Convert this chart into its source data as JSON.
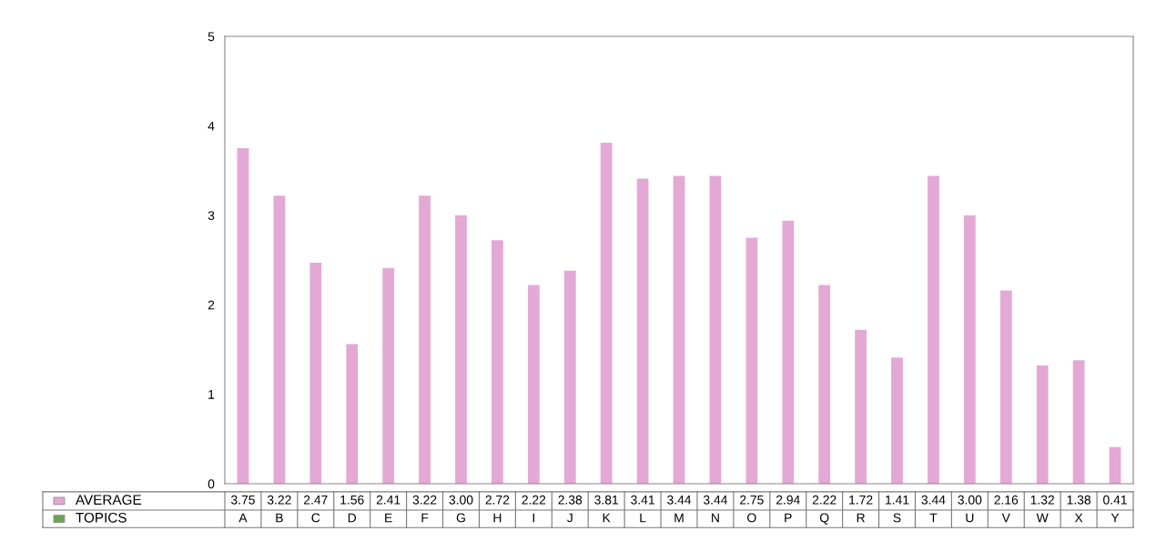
{
  "chart_data": {
    "type": "bar",
    "annotations": [
      "TOPICS"
    ],
    "categories": [
      "A",
      "B",
      "C",
      "D",
      "E",
      "F",
      "G",
      "H",
      "I",
      "J",
      "K",
      "L",
      "M",
      "N",
      "O",
      "P",
      "Q",
      "R",
      "S",
      "T",
      "U",
      "V",
      "W",
      "X",
      "Y"
    ],
    "series": [
      {
        "name": "AVERAGE",
        "color": "#e4a8d4",
        "values": [
          3.75,
          3.22,
          2.47,
          1.56,
          2.41,
          3.22,
          3.0,
          2.72,
          2.22,
          2.38,
          3.81,
          3.41,
          3.44,
          3.44,
          2.75,
          2.94,
          2.22,
          1.72,
          1.41,
          3.44,
          3.0,
          2.16,
          1.32,
          1.38,
          0.41
        ],
        "value_labels": [
          "3.75",
          "3.22",
          "2.47",
          "1.56",
          "2.41",
          "3.22",
          "3.00",
          "2.72",
          "2.22",
          "2.38",
          "3.81",
          "3.41",
          "3.44",
          "3.44",
          "2.75",
          "2.94",
          "2.22",
          "1.72",
          "1.41",
          "3.44",
          "3.00",
          "2.16",
          "1.32",
          "1.38",
          "0.41"
        ]
      }
    ],
    "ylim": [
      0,
      5
    ],
    "yticks": [
      0,
      1,
      2,
      3,
      4,
      5
    ],
    "grid": false
  }
}
